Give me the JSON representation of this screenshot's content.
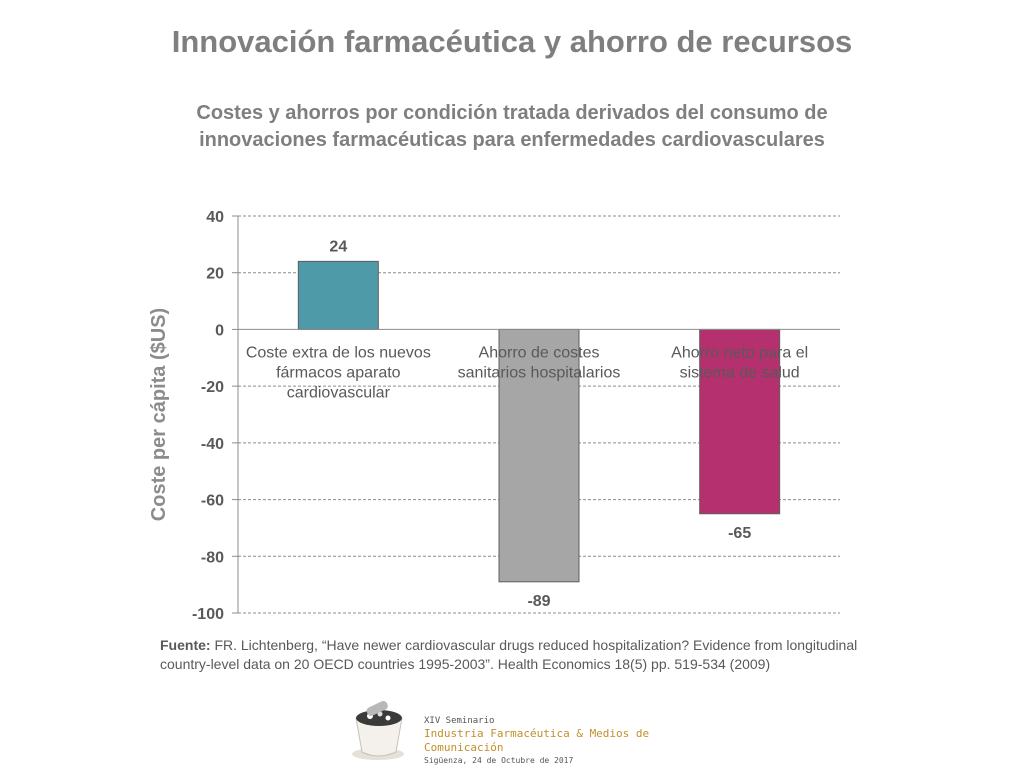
{
  "title": "Innovación farmacéutica y ahorro de recursos",
  "subtitle_lines": [
    "Costes y ahorros por condición tratada derivados del consumo de",
    "innovaciones farmacéuticas para enfermedades cardiovasculares"
  ],
  "chart_data": {
    "type": "bar",
    "ylabel": "Coste per cápita ($US)",
    "ylim": [
      -100,
      40
    ],
    "yticks": [
      40,
      20,
      0,
      -20,
      -40,
      -60,
      -80,
      -100
    ],
    "grid": true,
    "categories": [
      [
        "Coste extra de los nuevos",
        "fármacos aparato",
        "cardiovascular"
      ],
      [
        "Ahorro de costes",
        "sanitarios hospitalarios"
      ],
      [
        "Ahorro neto para el",
        "sistema de salud"
      ]
    ],
    "values": [
      24,
      -89,
      -65
    ],
    "data_labels": [
      "24",
      "-89",
      "-65"
    ],
    "colors": [
      "#4e9aa9",
      "#a6a6a6",
      "#b5306f"
    ]
  },
  "source": {
    "label": "Fuente:",
    "text": " FR. Lichtenberg, “Have newer cardiovascular drugs reduced hospitalization? Evidence from longitudinal country-level data on 20 OECD countries 1995-2003”. Health Economics 18(5) pp. 519-534 (2009)"
  },
  "logo": {
    "line1": "XIV Seminario",
    "line2": "Industria Farmacéutica & Medios de Comunicación",
    "line3": "Sigüenza, 24 de Octubre de 2017"
  }
}
